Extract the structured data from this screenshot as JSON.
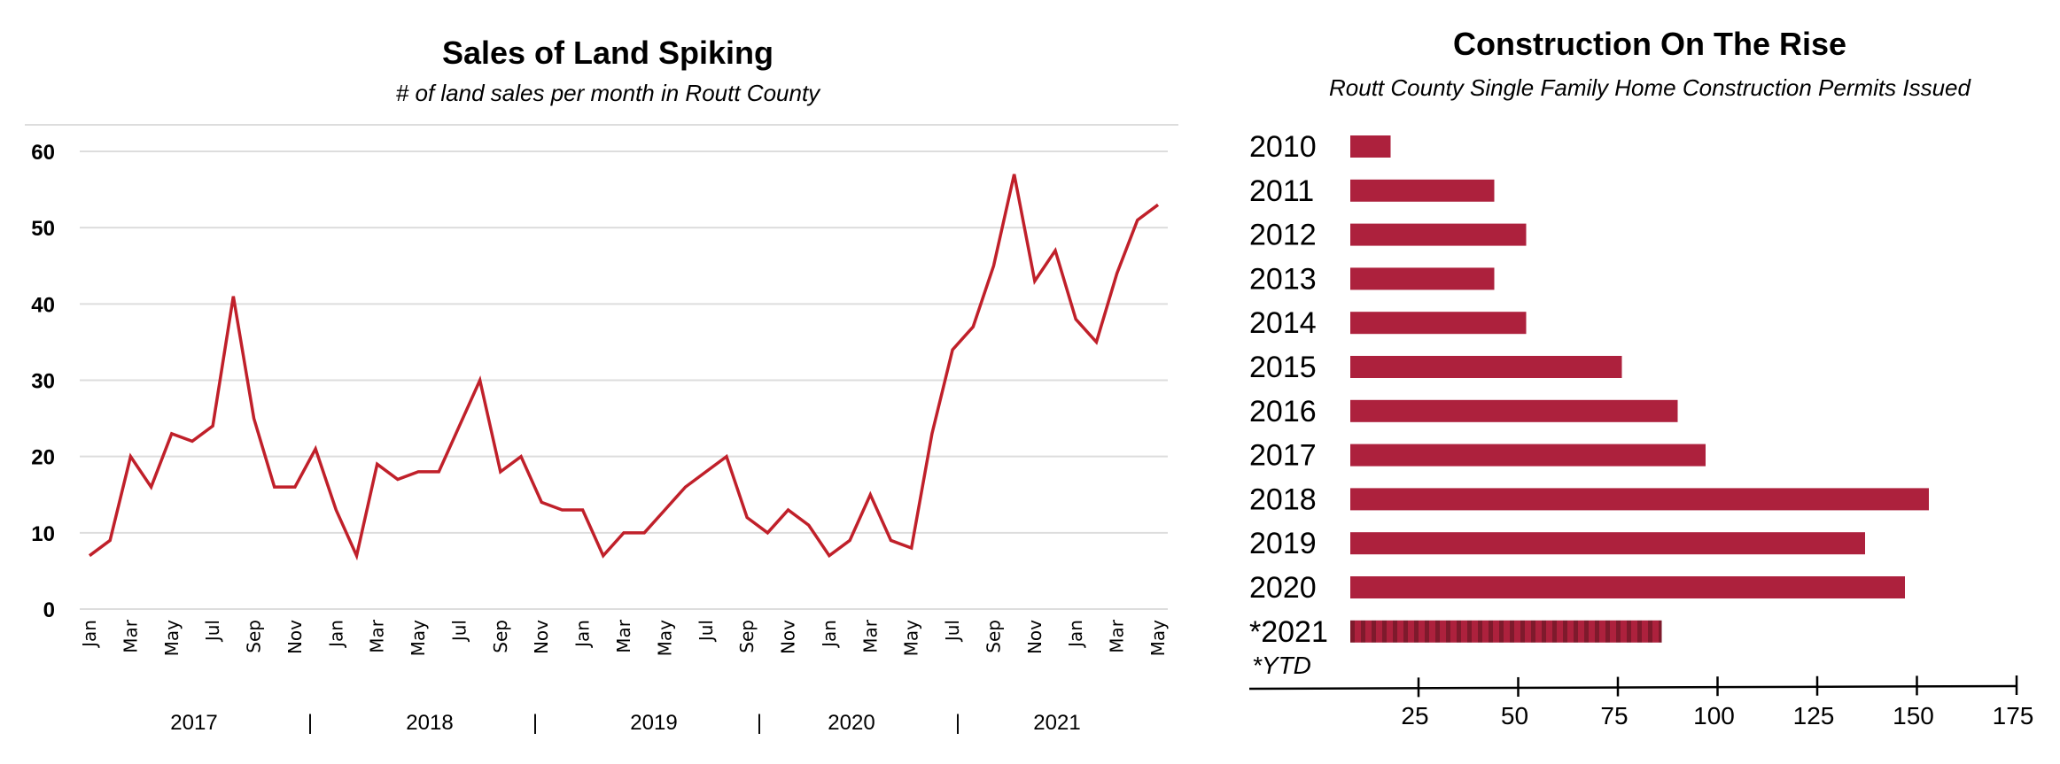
{
  "colors": {
    "line": "#c0202a",
    "bar": "#ad213d",
    "bar_stripe": "#7e1a2c",
    "grid": "#dddddd"
  },
  "chart_data": [
    {
      "type": "line",
      "title": "Sales of Land Spiking",
      "subtitle": "# of land sales per month in Routt County",
      "xlabel": "",
      "ylabel": "",
      "ylim": [
        0,
        60
      ],
      "yticks": [
        0,
        10,
        20,
        30,
        40,
        50,
        60
      ],
      "grid": true,
      "x_tick_labels": [
        "Jan",
        "Mar",
        "May",
        "Jul",
        "Sep",
        "Nov",
        "Jan",
        "Mar",
        "May",
        "Jul",
        "Sep",
        "Nov",
        "Jan",
        "Mar",
        "May",
        "Jul",
        "Sep",
        "Nov",
        "Jan",
        "Mar",
        "May",
        "Jul",
        "Sep",
        "Nov",
        "Jan",
        "Mar",
        "May"
      ],
      "year_labels": [
        "2017",
        "2018",
        "2019",
        "2020",
        "2021"
      ],
      "year_separator": "|",
      "series": [
        {
          "name": "Land sales",
          "start": "Jan 2017",
          "values": [
            7,
            9,
            20,
            16,
            23,
            22,
            24,
            41,
            25,
            16,
            16,
            21,
            13,
            7,
            19,
            17,
            18,
            18,
            24,
            30,
            18,
            20,
            14,
            13,
            13,
            7,
            10,
            10,
            13,
            16,
            18,
            20,
            12,
            10,
            13,
            11,
            7,
            9,
            15,
            9,
            8,
            23,
            34,
            37,
            45,
            57,
            43,
            47,
            38,
            35,
            44,
            51,
            53
          ]
        }
      ]
    },
    {
      "type": "bar",
      "orientation": "horizontal",
      "title": "Construction On The Rise",
      "subtitle": "Routt County Single Family Home Construction Permits Issued",
      "categories": [
        "2010",
        "2011",
        "2012",
        "2013",
        "2014",
        "2015",
        "2016",
        "2017",
        "2018",
        "2019",
        "2020",
        "*2021"
      ],
      "values": [
        18,
        44,
        52,
        44,
        52,
        76,
        90,
        97,
        153,
        137,
        147,
        86
      ],
      "partial": [
        false,
        false,
        false,
        false,
        false,
        false,
        false,
        false,
        false,
        false,
        false,
        true
      ],
      "note": "*YTD",
      "xticks": [
        25,
        50,
        75,
        100,
        125,
        150,
        175
      ],
      "xlim": [
        0,
        175
      ]
    }
  ]
}
